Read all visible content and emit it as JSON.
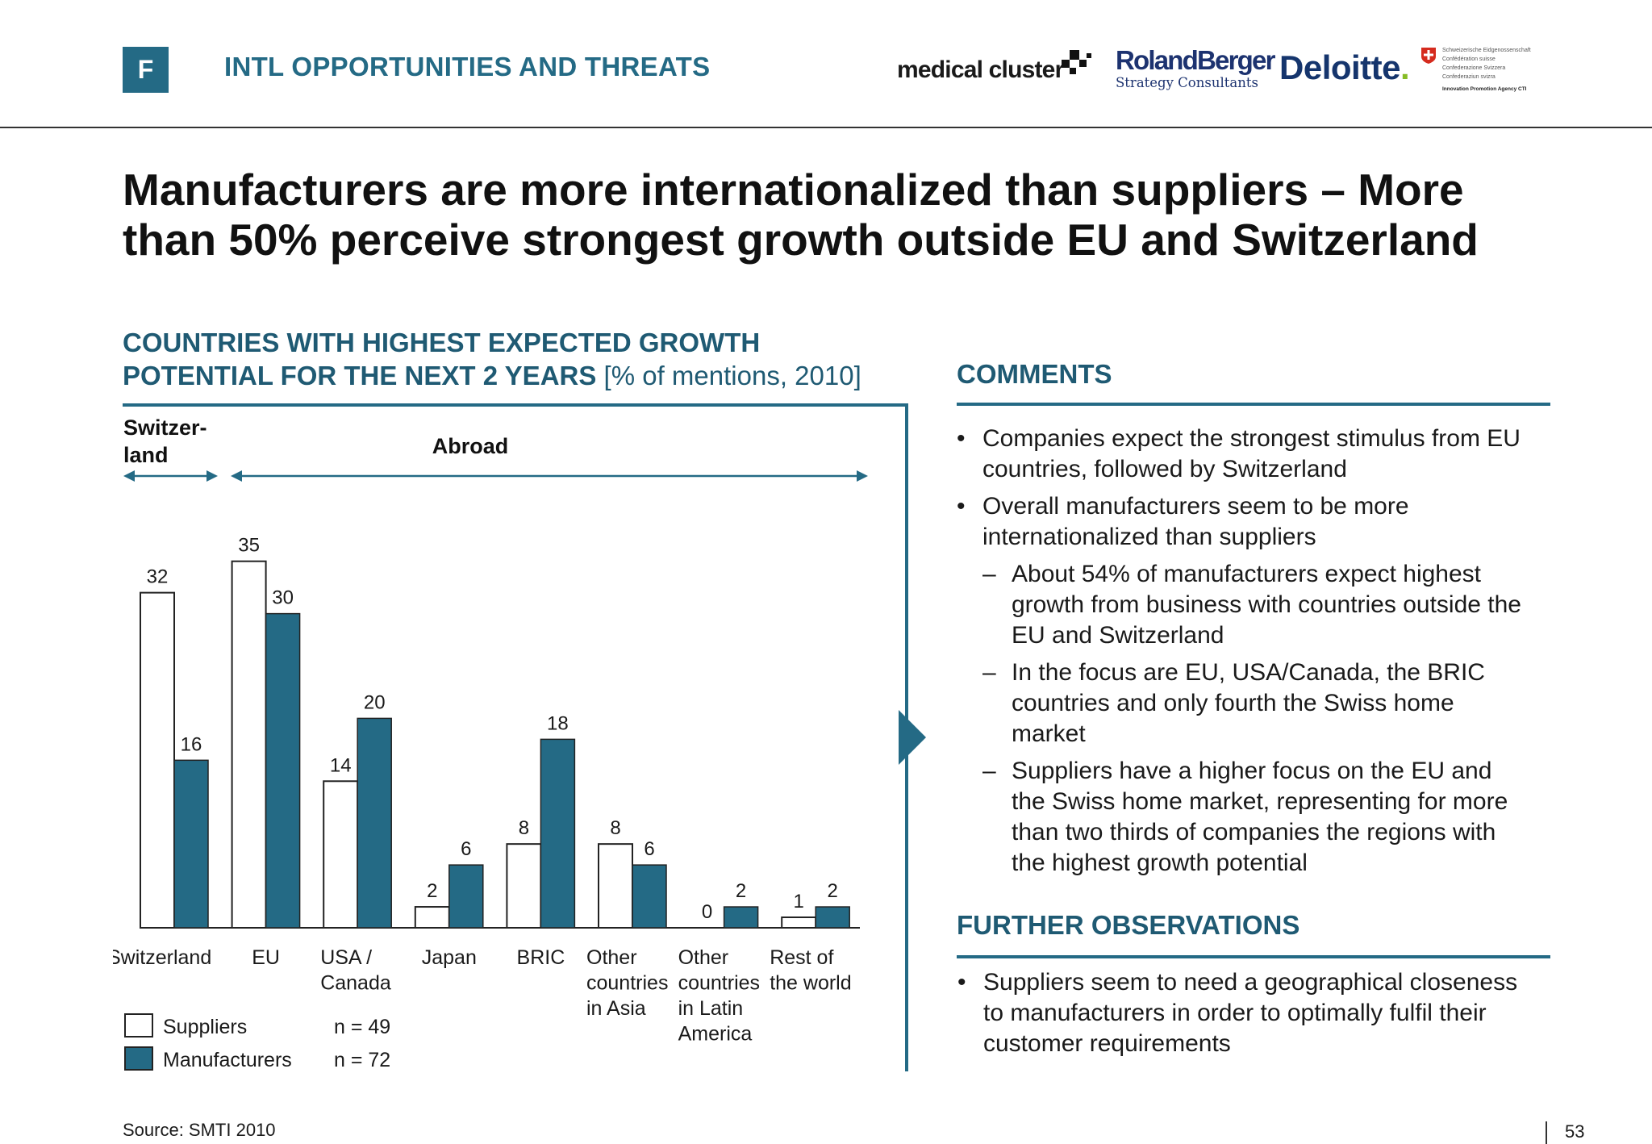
{
  "header": {
    "badge": "F",
    "section_title": "INTL OPPORTUNITIES AND THREATS",
    "logos": {
      "medical_cluster": "medical cluster",
      "roland_berger": "RolandBerger",
      "roland_berger_sub": "Strategy Consultants",
      "deloitte": "Deloitte",
      "deloitte_dot": ".",
      "swiss_lines": [
        "Schweizerische Eidgenossenschaft",
        "Confédération suisse",
        "Confederazione Svizzera",
        "Confederaziun svizra"
      ],
      "swiss_agency": "Innovation Promotion Agency CTI"
    }
  },
  "headline": {
    "line1": "Manufacturers are more internationalized than suppliers – More",
    "line2": "than 50% perceive strongest growth outside EU and Switzerland"
  },
  "chart_data": {
    "type": "bar",
    "title_line1": "COUNTRIES WITH HIGHEST EXPECTED GROWTH",
    "title_line2": "POTENTIAL FOR THE NEXT 2 YEARS",
    "unit": "[% of mentions, 2010]",
    "categories": [
      [
        "Switzerland"
      ],
      [
        "EU"
      ],
      [
        "USA /",
        "Canada"
      ],
      [
        "Japan"
      ],
      [
        "BRIC"
      ],
      [
        "Other",
        "countries",
        "in Asia"
      ],
      [
        "Other",
        "countries",
        "in Latin",
        "America"
      ],
      [
        "Rest of",
        "the world"
      ]
    ],
    "series": [
      {
        "name": "Suppliers",
        "n": "n = 49",
        "color": "#ffffff",
        "values": [
          32,
          35,
          14,
          2,
          8,
          8,
          0,
          1
        ]
      },
      {
        "name": "Manufacturers",
        "n": "n = 72",
        "color": "#246a85",
        "values": [
          16,
          30,
          20,
          6,
          18,
          6,
          2,
          2
        ]
      }
    ],
    "ylim": [
      0,
      35
    ],
    "grid": false,
    "groups": [
      {
        "label": "Switzer-\nland",
        "from": 0,
        "to": 0
      },
      {
        "label": "Abroad",
        "from": 1,
        "to": 7
      }
    ],
    "legend_position": "bottom-left"
  },
  "comments": {
    "heading": "COMMENTS",
    "bullet1": [
      "Companies expect the strongest stimulus from EU",
      "countries, followed by Switzerland"
    ],
    "bullet2": [
      "Overall manufacturers seem to be more",
      "internationalized than suppliers"
    ],
    "sub1": [
      "About 54% of manufacturers expect highest",
      "growth from business with countries outside the",
      "EU and Switzerland"
    ],
    "sub2": [
      "In the focus are EU, USA/Canada, the BRIC",
      "countries and only fourth the Swiss home",
      "market"
    ],
    "sub3": [
      "Suppliers have a higher focus on the EU and",
      "the Swiss home market, representing for more",
      "than two thirds of companies the regions with",
      "the highest growth potential"
    ]
  },
  "further": {
    "heading": "FURTHER OBSERVATIONS",
    "bullet1": [
      "Suppliers seem to need a geographical closeness",
      "to manufacturers in order to optimally fulfil their",
      "customer requirements"
    ]
  },
  "footer": {
    "source": "Source:  SMTI 2010",
    "page": "53"
  },
  "symbols": {
    "bullet": "•",
    "dash": "–"
  },
  "colors": {
    "accent": "#246a85",
    "heading": "#1f5a73"
  }
}
